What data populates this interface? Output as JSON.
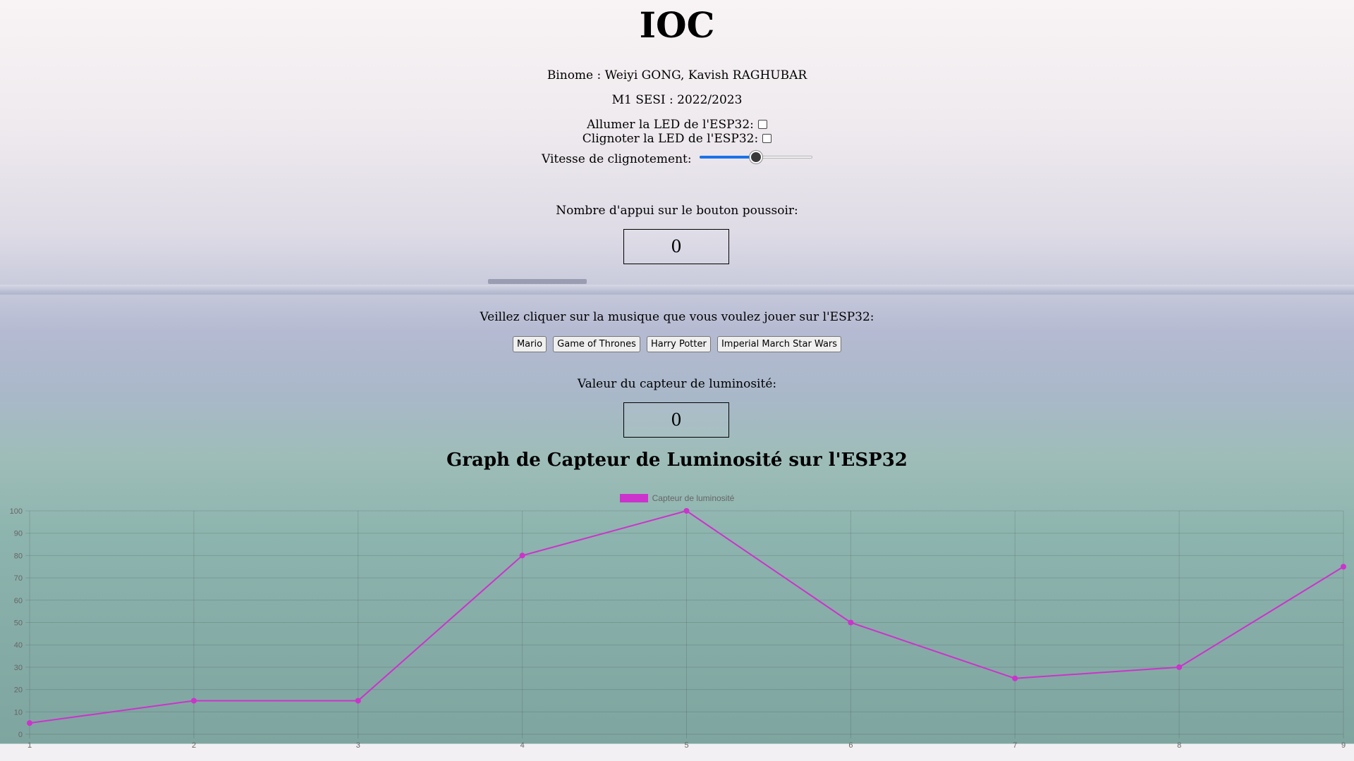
{
  "page": {
    "title": "IOC",
    "binome": "Binome : Weiyi GONG, Kavish RAGHUBAR",
    "promo": "M1 SESI : 2022/2023"
  },
  "controls": {
    "led_on_label": "Allumer la LED de l'ESP32:",
    "led_on_checked": false,
    "led_blink_label": "Clignoter la LED de l'ESP32:",
    "led_blink_checked": false,
    "speed_label": "Vitesse de clignotement:",
    "speed_value_fraction": 0.5
  },
  "button_counter": {
    "label": "Nombre d'appui sur le bouton poussoir:",
    "value": "0"
  },
  "music": {
    "label": "Veillez cliquer sur la musique que vous voulez jouer sur l'ESP32:",
    "buttons": [
      "Mario",
      "Game of Thrones",
      "Harry Potter",
      "Imperial March Star Wars"
    ]
  },
  "light_sensor": {
    "label": "Valeur du capteur de luminosité:",
    "value": "0"
  },
  "chart_section": {
    "title": "Graph de Capteur de Luminosité sur l'ESP32"
  },
  "chart_data": {
    "type": "line",
    "x": [
      1,
      2,
      3,
      4,
      5,
      6,
      7,
      8,
      9
    ],
    "series": [
      {
        "name": "Capteur de luminosité",
        "color": "#cc33cc",
        "values": [
          5,
          15,
          15,
          80,
          100,
          50,
          25,
          30,
          75
        ]
      }
    ],
    "ylim": [
      0,
      100
    ],
    "yticks": [
      0,
      10,
      20,
      30,
      40,
      50,
      60,
      70,
      80,
      90,
      100
    ],
    "grid": true,
    "legend_position": "top-center"
  }
}
